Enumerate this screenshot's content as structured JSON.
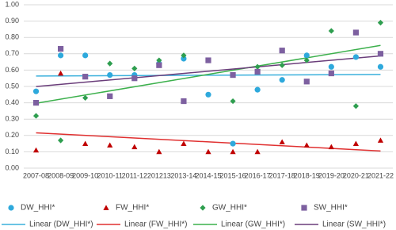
{
  "chart_data": {
    "type": "scatter",
    "categories": [
      "2007-08",
      "2008-09",
      "2009-10",
      "2010-11",
      "2011-12",
      "201213",
      "2013-14",
      "2014-15",
      "2015-16",
      "2016-17",
      "2017-18",
      "2018-19",
      "2019-20",
      "2020-21",
      "2021-22"
    ],
    "series": [
      {
        "name": "DW_HHI*",
        "color": "#2ea9dc",
        "marker": "circle",
        "trend_name": "Linear (DW_HHI*)",
        "trend_color": "#3ab0dc",
        "values": [
          0.47,
          0.69,
          0.69,
          0.57,
          0.57,
          0.64,
          0.67,
          0.45,
          0.15,
          0.48,
          0.54,
          0.69,
          0.62,
          0.68,
          0.62
        ]
      },
      {
        "name": "FW_HHI*",
        "color": "#c00000",
        "marker": "triangle",
        "trend_name": "Linear (FW_HHI*)",
        "trend_color": "#e03030",
        "values": [
          0.11,
          0.58,
          0.15,
          0.14,
          0.13,
          0.1,
          0.15,
          0.1,
          0.1,
          0.1,
          0.16,
          0.14,
          0.13,
          0.15,
          0.17
        ]
      },
      {
        "name": "GW_HHI*",
        "color": "#2e9e4f",
        "marker": "diamond",
        "trend_name": "Linear (GW_HHI*)",
        "trend_color": "#3cb04c",
        "values": [
          0.32,
          0.17,
          0.43,
          0.64,
          0.61,
          0.66,
          0.69,
          0.66,
          0.41,
          0.62,
          0.63,
          0.66,
          0.84,
          0.38,
          0.89
        ]
      },
      {
        "name": "SW_HHI*",
        "color": "#7d60a0",
        "marker": "square",
        "trend_name": "Linear (SW_HHI*)",
        "trend_color": "#6a3d7a",
        "values": [
          0.4,
          0.73,
          0.56,
          0.44,
          0.55,
          0.63,
          0.41,
          0.66,
          0.57,
          0.59,
          0.72,
          0.53,
          0.58,
          0.83,
          0.7
        ]
      }
    ],
    "ylim": [
      0,
      1
    ],
    "yticks": [
      {
        "value": 0,
        "label": "0.00"
      },
      {
        "value": 0.1,
        "label": "0.10"
      },
      {
        "value": 0.2,
        "label": "0.20"
      },
      {
        "value": 0.3,
        "label": "0.30"
      },
      {
        "value": 0.4,
        "label": "0.40"
      },
      {
        "value": 0.5,
        "label": "0.50"
      },
      {
        "value": 0.6,
        "label": "0.60"
      },
      {
        "value": 0.7,
        "label": "0.70"
      },
      {
        "value": 0.8,
        "label": "0.80"
      },
      {
        "value": 0.9,
        "label": "0.90"
      },
      {
        "value": 1,
        "label": "1.00"
      }
    ],
    "grid": true
  }
}
